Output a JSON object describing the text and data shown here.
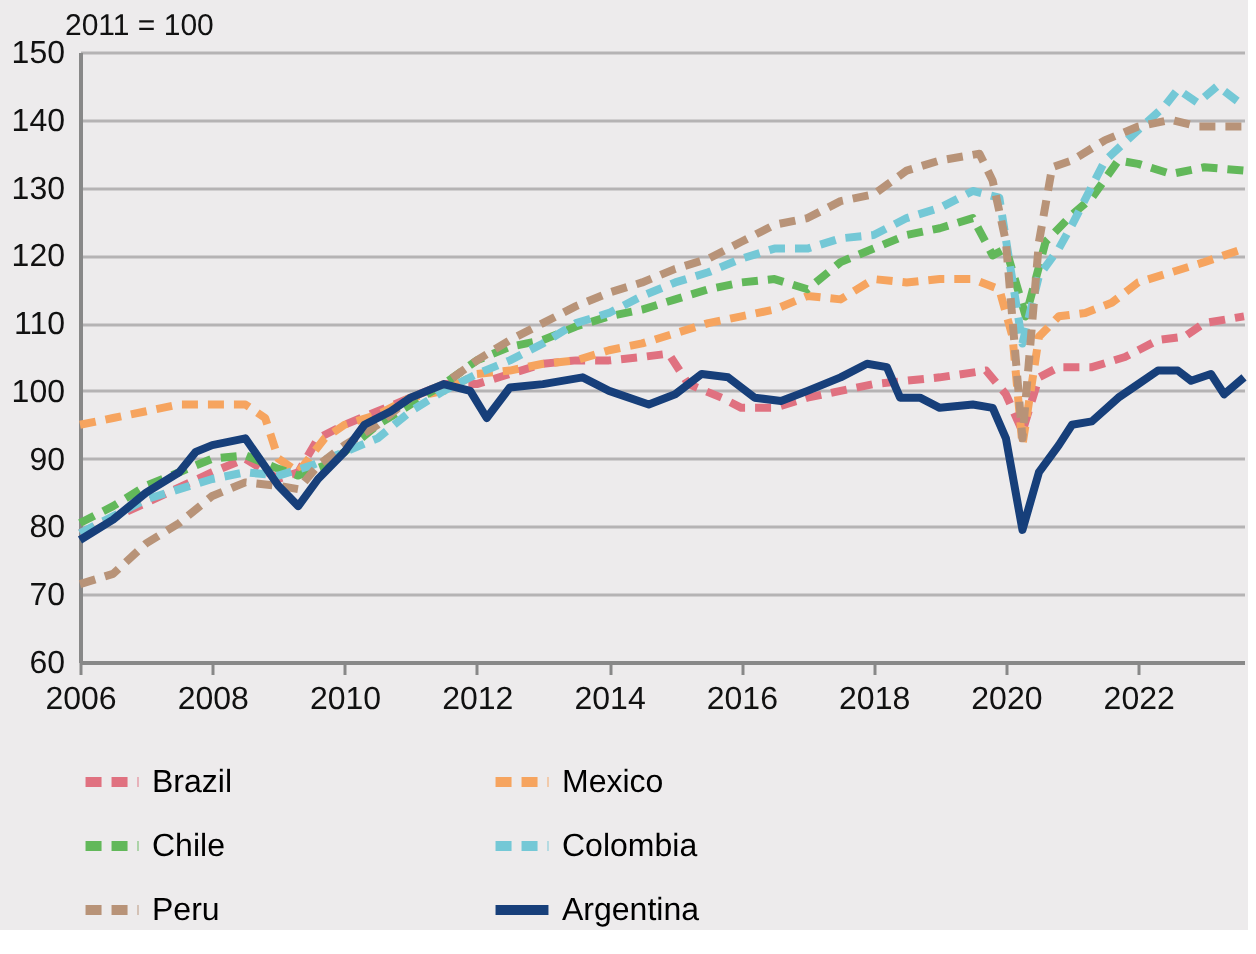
{
  "chart_data": {
    "type": "line",
    "ylabel": "2011 = 100",
    "xlim": [
      2006,
      2023.6
    ],
    "xticks": [
      2006,
      2008,
      2010,
      2012,
      2014,
      2016,
      2018,
      2020,
      2022
    ],
    "ylim": [
      60,
      150
    ],
    "yticks": [
      60,
      70,
      80,
      90,
      100,
      110,
      120,
      130,
      140,
      150
    ],
    "grid": "y",
    "legend": "bottom",
    "marker": "none",
    "series": [
      {
        "name": "Brazil",
        "color": "#e07180",
        "line_style": "dashed",
        "x": [
          2006,
          2007,
          2008,
          2008.5,
          2009,
          2009.3,
          2009.6,
          2010,
          2010.5,
          2011,
          2011.5,
          2012,
          2012.5,
          2013,
          2013.5,
          2014,
          2014.5,
          2014.9,
          2015.2,
          2015.7,
          2016,
          2016.5,
          2017,
          2017.5,
          2018,
          2018.5,
          2019,
          2019.7,
          2020,
          2020.25,
          2020.5,
          2020.8,
          2021.3,
          2021.8,
          2022.3,
          2022.7,
          2023,
          2023.6
        ],
        "values": [
          79,
          83.5,
          88,
          90,
          87,
          88,
          93,
          95,
          97,
          99,
          101,
          101,
          102.5,
          104,
          104.5,
          104.5,
          105,
          105.5,
          101,
          99,
          97.5,
          97.5,
          99,
          100,
          101,
          101.5,
          102,
          103,
          99.5,
          94,
          102,
          103.5,
          103.5,
          105,
          107.5,
          108,
          110,
          111
        ]
      },
      {
        "name": "Mexico",
        "color": "#f6a45f",
        "line_style": "dashed",
        "x": [
          2006,
          2006.5,
          2007,
          2007.5,
          2008,
          2008.5,
          2008.8,
          2009,
          2009.3,
          2009.7,
          2010,
          2010.5,
          2011,
          2011.5,
          2012,
          2012.5,
          2013,
          2013.5,
          2014,
          2014.5,
          2015,
          2015.5,
          2016,
          2016.5,
          2017,
          2017.5,
          2018,
          2018.5,
          2019,
          2019.5,
          2019.9,
          2020.1,
          2020.25,
          2020.5,
          2020.8,
          2021.2,
          2021.6,
          2022,
          2022.5,
          2023,
          2023.6
        ],
        "values": [
          95,
          96,
          97,
          98,
          98,
          98,
          96,
          90,
          88,
          93,
          95,
          96.5,
          99,
          100,
          102.5,
          103,
          104,
          104.5,
          106,
          107,
          108.5,
          110,
          111,
          112,
          114,
          113.5,
          116.5,
          116,
          116.5,
          116.5,
          115,
          108,
          92,
          108,
          111,
          111.5,
          113,
          116,
          117.5,
          119,
          121
        ]
      },
      {
        "name": "Chile",
        "color": "#62b85a",
        "line_style": "dashed",
        "x": [
          2006,
          2006.5,
          2007,
          2007.5,
          2008,
          2008.5,
          2009,
          2009.3,
          2009.7,
          2010,
          2010.5,
          2011,
          2011.5,
          2012,
          2012.5,
          2013,
          2013.5,
          2014,
          2014.5,
          2015,
          2015.5,
          2016,
          2016.5,
          2017,
          2017.5,
          2018,
          2018.5,
          2019,
          2019.5,
          2019.8,
          2020,
          2020.3,
          2020.6,
          2021,
          2021.3,
          2021.7,
          2022,
          2022.5,
          2023,
          2023.6
        ],
        "values": [
          80.5,
          83,
          86,
          88,
          90,
          90.5,
          88.5,
          87.5,
          89,
          91,
          95,
          98,
          101,
          104.5,
          106.5,
          107.5,
          109.5,
          111,
          112,
          113.5,
          115,
          116,
          116.5,
          115,
          119,
          121,
          123,
          124,
          125.5,
          120,
          121,
          111,
          122,
          126,
          128.5,
          134,
          133.5,
          132,
          133,
          132.5
        ]
      },
      {
        "name": "Colombia",
        "color": "#74c8d6",
        "line_style": "dashed",
        "x": [
          2006,
          2007,
          2008,
          2008.5,
          2009,
          2009.5,
          2010,
          2010.5,
          2011,
          2011.5,
          2012,
          2012.5,
          2013,
          2013.5,
          2014,
          2014.5,
          2015,
          2015.5,
          2016,
          2016.5,
          2017,
          2017.5,
          2018,
          2018.5,
          2019,
          2019.5,
          2019.9,
          2020.25,
          2020.5,
          2020.8,
          2021,
          2021.5,
          2022,
          2022.4,
          2022.6,
          2022.9,
          2023.2,
          2023.6
        ],
        "values": [
          79,
          84,
          87,
          88,
          87.5,
          89,
          91,
          93,
          97,
          100,
          102.5,
          104.5,
          107,
          110,
          111.5,
          114,
          116,
          117.5,
          119.5,
          121,
          121,
          122.5,
          123,
          125.5,
          127,
          129.5,
          128.5,
          107,
          117,
          121,
          124.5,
          134,
          138.5,
          142,
          144.5,
          142.5,
          145,
          142
        ]
      },
      {
        "name": "Peru",
        "color": "#b89378",
        "line_style": "dashed",
        "x": [
          2006,
          2006.5,
          2007,
          2007.5,
          2008,
          2008.5,
          2009,
          2009.3,
          2009.6,
          2010,
          2010.5,
          2011,
          2011.5,
          2012,
          2012.5,
          2013,
          2013.5,
          2014,
          2014.5,
          2015,
          2015.5,
          2016,
          2016.5,
          2017,
          2017.5,
          2018,
          2018.5,
          2019,
          2019.6,
          2019.8,
          2020,
          2020.25,
          2020.5,
          2020.7,
          2021,
          2021.5,
          2022,
          2022.5,
          2022.9,
          2023.2,
          2023.6
        ],
        "values": [
          71.5,
          73,
          77.5,
          80.5,
          84.5,
          86.5,
          86,
          85.5,
          89,
          92,
          95,
          99,
          101,
          104.5,
          107.5,
          110,
          112.5,
          114.5,
          116,
          118,
          119.5,
          122,
          124.5,
          125.5,
          128,
          129,
          132.5,
          134,
          135,
          131,
          122,
          93,
          122,
          133,
          134,
          137,
          139,
          140,
          139,
          139,
          139
        ]
      },
      {
        "name": "Argentina",
        "color": "#173f7a",
        "line_style": "solid",
        "x": [
          2006,
          2006.5,
          2007,
          2007.5,
          2007.75,
          2008,
          2008.5,
          2009,
          2009.3,
          2009.6,
          2010,
          2010.3,
          2010.7,
          2011,
          2011.5,
          2011.9,
          2012.15,
          2012.5,
          2013,
          2013.6,
          2014,
          2014.6,
          2015,
          2015.4,
          2015.8,
          2016.2,
          2016.6,
          2017,
          2017.5,
          2017.9,
          2018.2,
          2018.4,
          2018.7,
          2019,
          2019.5,
          2019.8,
          2020,
          2020.25,
          2020.5,
          2020.8,
          2021,
          2021.3,
          2021.7,
          2022,
          2022.3,
          2022.6,
          2022.8,
          2023.1,
          2023.3,
          2023.6
        ],
        "values": [
          78,
          81,
          85,
          88,
          91,
          92,
          93,
          86,
          83,
          87,
          91,
          95,
          97,
          99,
          101,
          100,
          96,
          100.5,
          101,
          102,
          100,
          98,
          99.5,
          102.5,
          102,
          99,
          98.5,
          100,
          102,
          104,
          103.5,
          99,
          99,
          97.5,
          98,
          97.5,
          93,
          79.5,
          88,
          92,
          95,
          95.5,
          99,
          101,
          103,
          103,
          101.5,
          102.5,
          99.5,
          102
        ]
      }
    ]
  }
}
